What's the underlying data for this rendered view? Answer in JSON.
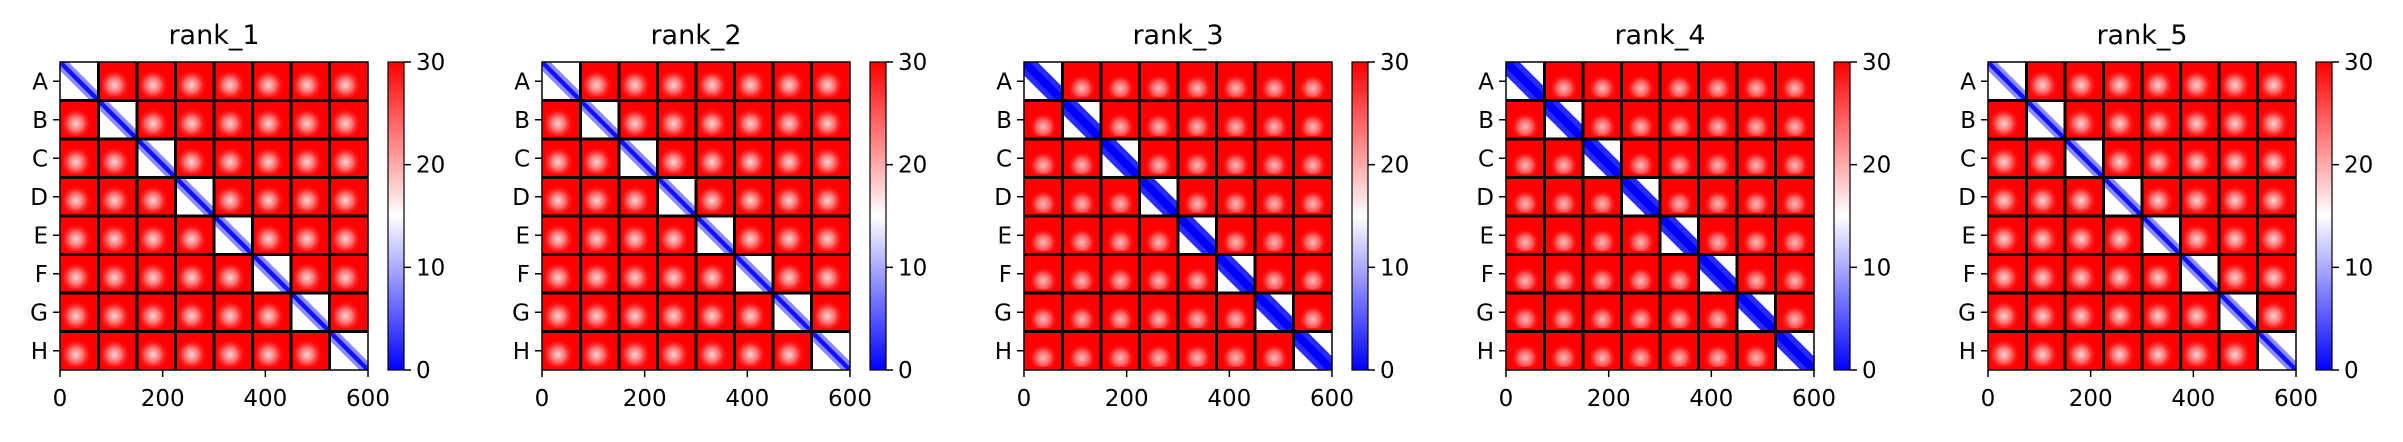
{
  "chart_data": [
    {
      "type": "heatmap",
      "title": "rank_1",
      "xticks": [
        "0",
        "200",
        "400",
        "600"
      ],
      "yticks": [
        "A",
        "B",
        "C",
        "D",
        "E",
        "F",
        "G",
        "H"
      ],
      "colorbar_ticks": [
        "0",
        "10",
        "20",
        "30"
      ],
      "vmin": 0,
      "vmax": 30,
      "xlim": [
        0,
        600
      ],
      "blocks": 8,
      "colormap": "bwr",
      "diagonal_width": "thin"
    },
    {
      "type": "heatmap",
      "title": "rank_2",
      "xticks": [
        "0",
        "200",
        "400",
        "600"
      ],
      "yticks": [
        "A",
        "B",
        "C",
        "D",
        "E",
        "F",
        "G",
        "H"
      ],
      "colorbar_ticks": [
        "0",
        "10",
        "20",
        "30"
      ],
      "vmin": 0,
      "vmax": 30,
      "xlim": [
        0,
        600
      ],
      "blocks": 8,
      "colormap": "bwr",
      "diagonal_width": "thin"
    },
    {
      "type": "heatmap",
      "title": "rank_3",
      "xticks": [
        "0",
        "200",
        "400",
        "600"
      ],
      "yticks": [
        "A",
        "B",
        "C",
        "D",
        "E",
        "F",
        "G",
        "H"
      ],
      "colorbar_ticks": [
        "0",
        "10",
        "20",
        "30"
      ],
      "vmin": 0,
      "vmax": 30,
      "xlim": [
        0,
        600
      ],
      "blocks": 8,
      "colormap": "bwr",
      "diagonal_width": "wide"
    },
    {
      "type": "heatmap",
      "title": "rank_4",
      "xticks": [
        "0",
        "200",
        "400",
        "600"
      ],
      "yticks": [
        "A",
        "B",
        "C",
        "D",
        "E",
        "F",
        "G",
        "H"
      ],
      "colorbar_ticks": [
        "0",
        "10",
        "20",
        "30"
      ],
      "vmin": 0,
      "vmax": 30,
      "xlim": [
        0,
        600
      ],
      "blocks": 8,
      "colormap": "bwr",
      "diagonal_width": "wide"
    },
    {
      "type": "heatmap",
      "title": "rank_5",
      "xticks": [
        "0",
        "200",
        "400",
        "600"
      ],
      "yticks": [
        "A",
        "B",
        "C",
        "D",
        "E",
        "F",
        "G",
        "H"
      ],
      "colorbar_ticks": [
        "0",
        "10",
        "20",
        "30"
      ],
      "vmin": 0,
      "vmax": 30,
      "xlim": [
        0,
        600
      ],
      "blocks": 8,
      "colormap": "bwr",
      "diagonal_width": "thin"
    }
  ],
  "colors": {
    "high": "#ff0000",
    "mid": "#ffffff",
    "low": "#0000ff",
    "grid": "#000000"
  }
}
